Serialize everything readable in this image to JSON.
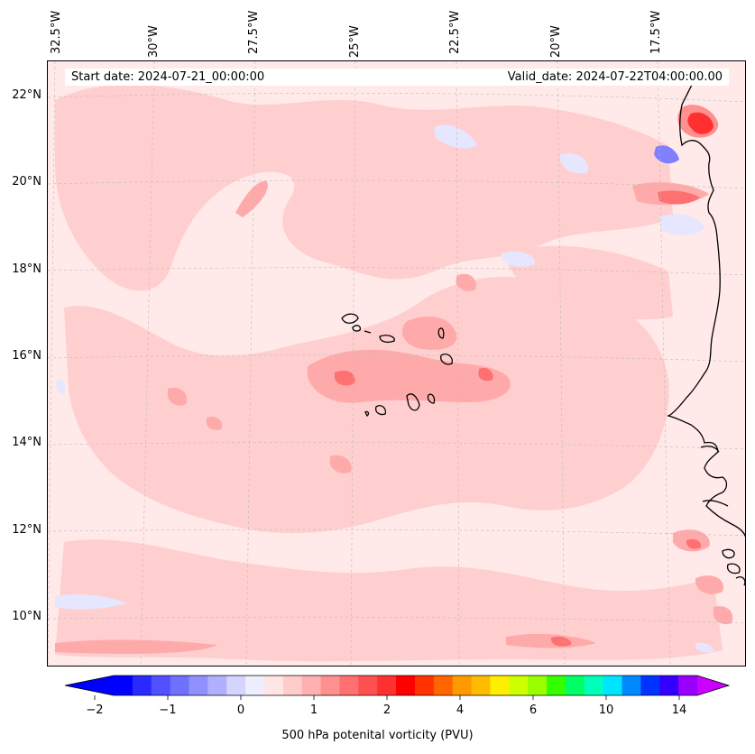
{
  "header": {
    "start_date": "Start date: 2024-07-21_00:00:00",
    "valid_date": "Valid_date: 2024-07-22T04:00:00.00"
  },
  "axes": {
    "lon_labels": [
      "32.5°W",
      "30°W",
      "27.5°W",
      "25°W",
      "22.5°W",
      "20°W",
      "17.5°W"
    ],
    "lat_labels": [
      "22°N",
      "20°N",
      "18°N",
      "16°N",
      "14°N",
      "12°N",
      "10°N"
    ]
  },
  "colorbar": {
    "label": "500 hPa potenital vorticity (PVU)",
    "ticks": [
      "−2",
      "−1",
      "0",
      "1",
      "2",
      "4",
      "6",
      "10",
      "14"
    ],
    "colors": [
      "#0000ff",
      "#2a2aff",
      "#5050ff",
      "#7070ff",
      "#9090ff",
      "#b0b0ff",
      "#d4d4ff",
      "#eeeeff",
      "#ffe6e6",
      "#ffcccc",
      "#ffb0b0",
      "#ff9090",
      "#ff7070",
      "#ff5050",
      "#ff3030",
      "#ff0000",
      "#ff3300",
      "#ff6600",
      "#ff9900",
      "#ffbb00",
      "#ffee00",
      "#ccff00",
      "#99ff00",
      "#33ff00",
      "#00ff66",
      "#00ffbb",
      "#00e5ff",
      "#0088ff",
      "#0033ff",
      "#3300ff",
      "#9900ff"
    ],
    "under_color": "#0000ff",
    "over_color": "#cc00ff"
  },
  "colors": {
    "background_field": "#ffe9e9",
    "light_pink": "#ffcfcf",
    "medium_pink": "#ffaaaa",
    "red": "#ff3030",
    "light_blue": "#e6e6ff",
    "blue": "#7070ff",
    "coastline": "#000000"
  }
}
